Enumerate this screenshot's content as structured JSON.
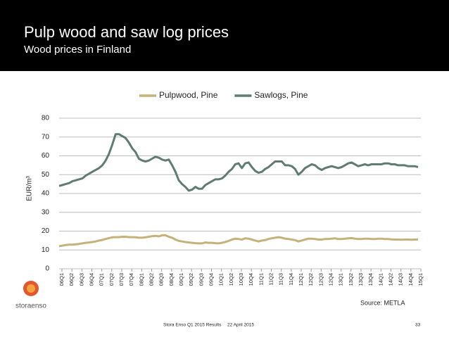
{
  "header": {
    "title": "Pulp wood and saw log prices",
    "subtitle": "Wood prices in Finland"
  },
  "chart_data": {
    "type": "line",
    "y_label": "EUR/m³",
    "categories": [
      "06Q1",
      null,
      null,
      "06Q2",
      null,
      null,
      "06Q3",
      null,
      null,
      "06Q4",
      null,
      null,
      "07Q1",
      null,
      null,
      "07Q2",
      null,
      null,
      "07Q3",
      null,
      null,
      "07Q4",
      null,
      null,
      "08Q1",
      null,
      null,
      "08Q2",
      null,
      null,
      "08Q3",
      null,
      null,
      "08Q4",
      null,
      null,
      "09Q1",
      null,
      null,
      "09Q2",
      null,
      null,
      "09Q3",
      null,
      null,
      "09Q4",
      null,
      null,
      "10Q1",
      null,
      null,
      "10Q2",
      null,
      null,
      "10Q3",
      null,
      null,
      "10Q4",
      null,
      null,
      "11Q1",
      null,
      null,
      "11Q2",
      null,
      null,
      "11Q3",
      null,
      null,
      "11Q4",
      null,
      null,
      "12Q1",
      null,
      null,
      "12Q2",
      null,
      null,
      "12Q3",
      null,
      null,
      "12Q4",
      null,
      null,
      "13Q1",
      null,
      null,
      "13Q2",
      null,
      null,
      "13Q3",
      null,
      null,
      "13Q4",
      null,
      null,
      "14Q1",
      null,
      null,
      "14Q2",
      null,
      null,
      "14Q3",
      null,
      null,
      "14Q4",
      null,
      null,
      "15Q1"
    ],
    "series": [
      {
        "name": "Pulpwood, Pine",
        "color": "#c4b27a",
        "values": [
          12,
          12.3,
          12.6,
          12.8,
          12.8,
          13,
          13.2,
          13.5,
          13.8,
          14,
          14.2,
          14.5,
          15,
          15.3,
          15.8,
          16.3,
          16.7,
          16.8,
          16.8,
          17,
          17,
          16.8,
          16.8,
          16.7,
          16.5,
          16.5,
          16.7,
          17,
          17.3,
          17.5,
          17.2,
          17.8,
          17.8,
          17,
          16.5,
          15.5,
          14.8,
          14.5,
          14.2,
          14,
          13.8,
          13.6,
          13.5,
          13.5,
          14,
          13.8,
          13.8,
          13.6,
          13.5,
          13.8,
          14.2,
          14.8,
          15.5,
          16,
          15.8,
          15.5,
          16.2,
          16,
          15.5,
          15,
          14.5,
          15,
          15.2,
          15.8,
          16.2,
          16.5,
          16.8,
          16.5,
          16,
          15.8,
          15.5,
          15.2,
          14.5,
          15,
          15.5,
          16,
          16,
          15.8,
          15.5,
          15.5,
          15.8,
          15.8,
          16,
          16.2,
          15.8,
          15.8,
          16,
          16.2,
          16.3,
          16,
          15.8,
          15.8,
          16,
          16,
          15.8,
          15.8,
          16,
          16,
          15.8,
          15.8,
          15.6,
          15.5,
          15.5,
          15.4,
          15.5,
          15.5,
          15.4,
          15.5,
          15.5
        ]
      },
      {
        "name": "Sawlogs, Pine",
        "color": "#5f7b72",
        "values": [
          44,
          44.5,
          45,
          45.5,
          46.5,
          47,
          47.5,
          48,
          49.5,
          50.5,
          51.5,
          52.5,
          53.5,
          55,
          57.5,
          61,
          66,
          71.5,
          71.5,
          70.5,
          69.5,
          67,
          64,
          62,
          58.5,
          57.5,
          57,
          57.5,
          58.5,
          59.5,
          59,
          58,
          57.5,
          58,
          55,
          51.5,
          47,
          45,
          43.5,
          41.5,
          42,
          43.5,
          42.5,
          42.5,
          44.5,
          45.5,
          46.5,
          47.5,
          47.5,
          48,
          49.5,
          51.5,
          53,
          55.5,
          56,
          53.5,
          56,
          56.5,
          54,
          52,
          51,
          51.5,
          53,
          54,
          55.5,
          57,
          57,
          57,
          55,
          55,
          54.5,
          53,
          50,
          51.5,
          53.5,
          54.5,
          55.5,
          55,
          53.5,
          52.5,
          53.5,
          54,
          54.5,
          54,
          53.5,
          54,
          55,
          56,
          56.5,
          55.5,
          54.5,
          55,
          55.5,
          55,
          55.5,
          55.5,
          55.5,
          55.5,
          56,
          56,
          55.5,
          55.5,
          55,
          55,
          55,
          54.5,
          54.5,
          54.5,
          54
        ]
      }
    ],
    "ylim": [
      0,
      80
    ],
    "yticks": [
      0,
      10,
      20,
      30,
      40,
      50,
      60,
      70,
      80
    ],
    "grid": true,
    "legend": "top",
    "source": "Source: METLA"
  },
  "footer": {
    "company": "storaenso",
    "event": "Stora Enso Q1 2015 Results",
    "date": "22 April 2015",
    "page": "33"
  }
}
